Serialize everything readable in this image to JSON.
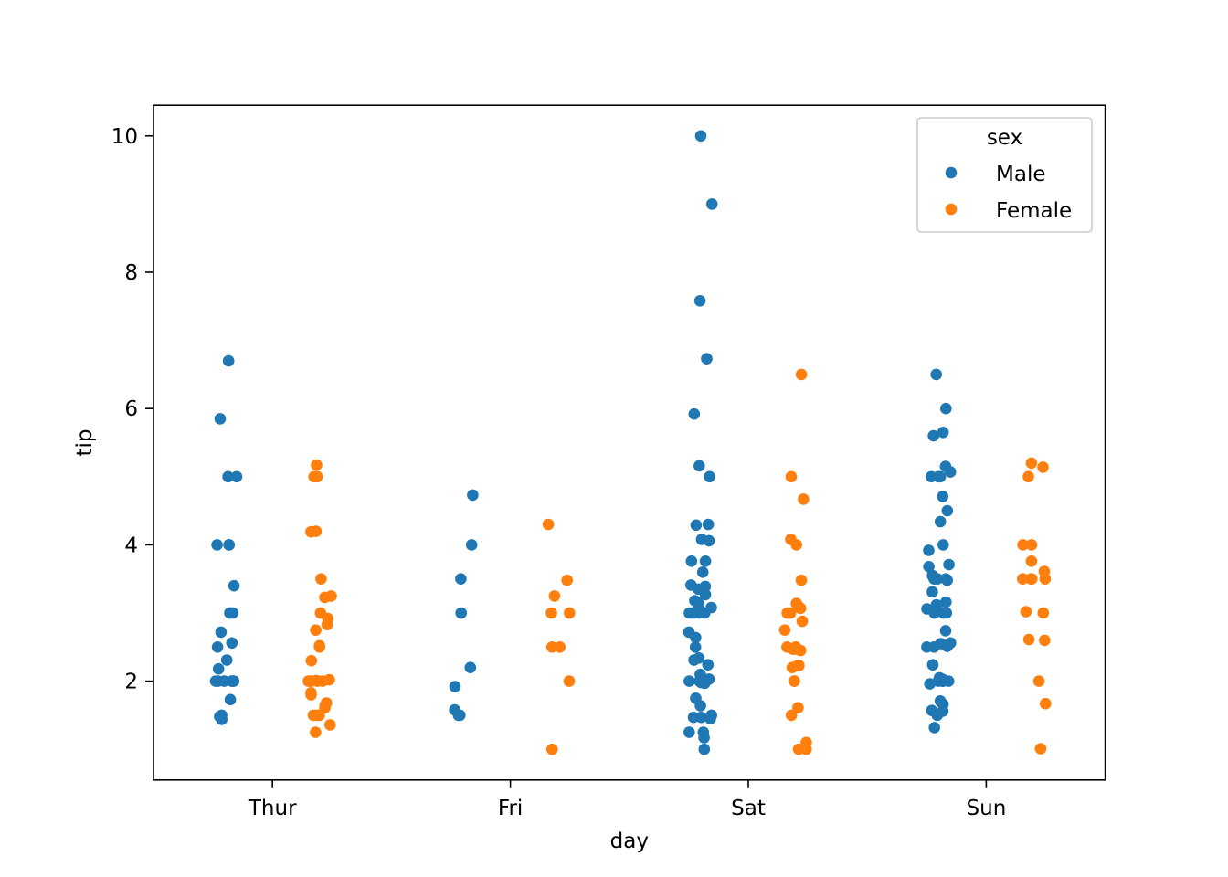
{
  "chart_data": {
    "type": "scatter",
    "subtype": "strip",
    "title": "",
    "xlabel": "day",
    "ylabel": "tip",
    "categories": [
      "Thur",
      "Fri",
      "Sat",
      "Sun"
    ],
    "yticks": [
      2,
      4,
      6,
      8,
      10
    ],
    "ylim": [
      0.55,
      10.45
    ],
    "grid": false,
    "hue": "sex",
    "dodge": true,
    "legend": {
      "title": "sex",
      "position": "top-right"
    },
    "series": [
      {
        "name": "Male",
        "color": "#1f77b4",
        "values": {
          "Thur": [
            6.7,
            5.85,
            5.0,
            5.0,
            4.0,
            4.0,
            4.0,
            3.4,
            3.0,
            3.0,
            3.0,
            2.72,
            2.56,
            2.5,
            2.31,
            2.18,
            2.0,
            2.0,
            2.0,
            2.0,
            2.0,
            2.0,
            1.73,
            1.5,
            1.48,
            1.44
          ],
          "Fri": [
            4.73,
            4.0,
            3.5,
            3.0,
            2.2,
            1.92,
            1.58,
            1.5,
            1.5
          ],
          "Sat": [
            10.0,
            9.0,
            7.58,
            6.73,
            5.92,
            5.16,
            5.0,
            4.3,
            4.29,
            4.08,
            4.06,
            3.76,
            3.76,
            3.6,
            3.41,
            3.39,
            3.35,
            3.27,
            3.18,
            3.15,
            3.12,
            3.09,
            3.08,
            3.0,
            3.0,
            3.0,
            3.0,
            3.0,
            2.72,
            2.64,
            2.5,
            2.34,
            2.31,
            2.24,
            2.1,
            2.05,
            2.03,
            2.01,
            2.0,
            2.0,
            2.0,
            2.0,
            1.98,
            1.97,
            1.75,
            1.64,
            1.5,
            1.47,
            1.47,
            1.45,
            1.25,
            1.25,
            1.17,
            1.0
          ],
          "Sun": [
            6.5,
            6.0,
            5.65,
            5.6,
            5.15,
            5.07,
            5.0,
            5.0,
            5.0,
            4.71,
            4.5,
            4.34,
            4.0,
            3.92,
            3.71,
            3.68,
            3.55,
            3.5,
            3.5,
            3.5,
            3.48,
            3.31,
            3.16,
            3.12,
            3.07,
            3.06,
            3.0,
            3.0,
            3.0,
            2.74,
            2.56,
            2.55,
            2.51,
            2.5,
            2.5,
            2.24,
            2.05,
            2.03,
            2.02,
            2.0,
            2.0,
            2.0,
            2.0,
            2.0,
            1.96,
            1.71,
            1.57,
            1.56,
            1.5,
            1.32,
            1.66
          ]
        }
      },
      {
        "name": "Female",
        "color": "#ff7f0e",
        "values": {
          "Thur": [
            5.17,
            5.0,
            5.0,
            4.2,
            4.19,
            3.5,
            3.25,
            3.23,
            3.0,
            2.92,
            2.83,
            2.75,
            2.52,
            2.5,
            2.3,
            2.02,
            2.01,
            2.0,
            2.0,
            2.0,
            2.0,
            2.0,
            1.83,
            1.8,
            1.68,
            1.64,
            1.61,
            1.5,
            1.5,
            1.5,
            1.36,
            1.25
          ],
          "Fri": [
            4.3,
            3.48,
            3.25,
            3.0,
            3.0,
            2.5,
            2.5,
            2.0,
            1.0
          ],
          "Sat": [
            6.5,
            5.0,
            4.67,
            4.08,
            4.0,
            3.48,
            3.14,
            3.07,
            3.07,
            3.0,
            3.0,
            2.88,
            2.75,
            2.5,
            2.5,
            2.47,
            2.47,
            2.45,
            2.23,
            2.23,
            2.2,
            2.0,
            2.0,
            1.61,
            1.5,
            1.1,
            1.0,
            1.0
          ],
          "Sun": [
            5.2,
            5.14,
            5.0,
            4.0,
            4.0,
            3.76,
            3.61,
            3.5,
            3.5,
            3.5,
            3.5,
            3.02,
            3.0,
            2.61,
            2.6,
            2.0,
            1.67,
            1.01
          ]
        }
      }
    ]
  }
}
